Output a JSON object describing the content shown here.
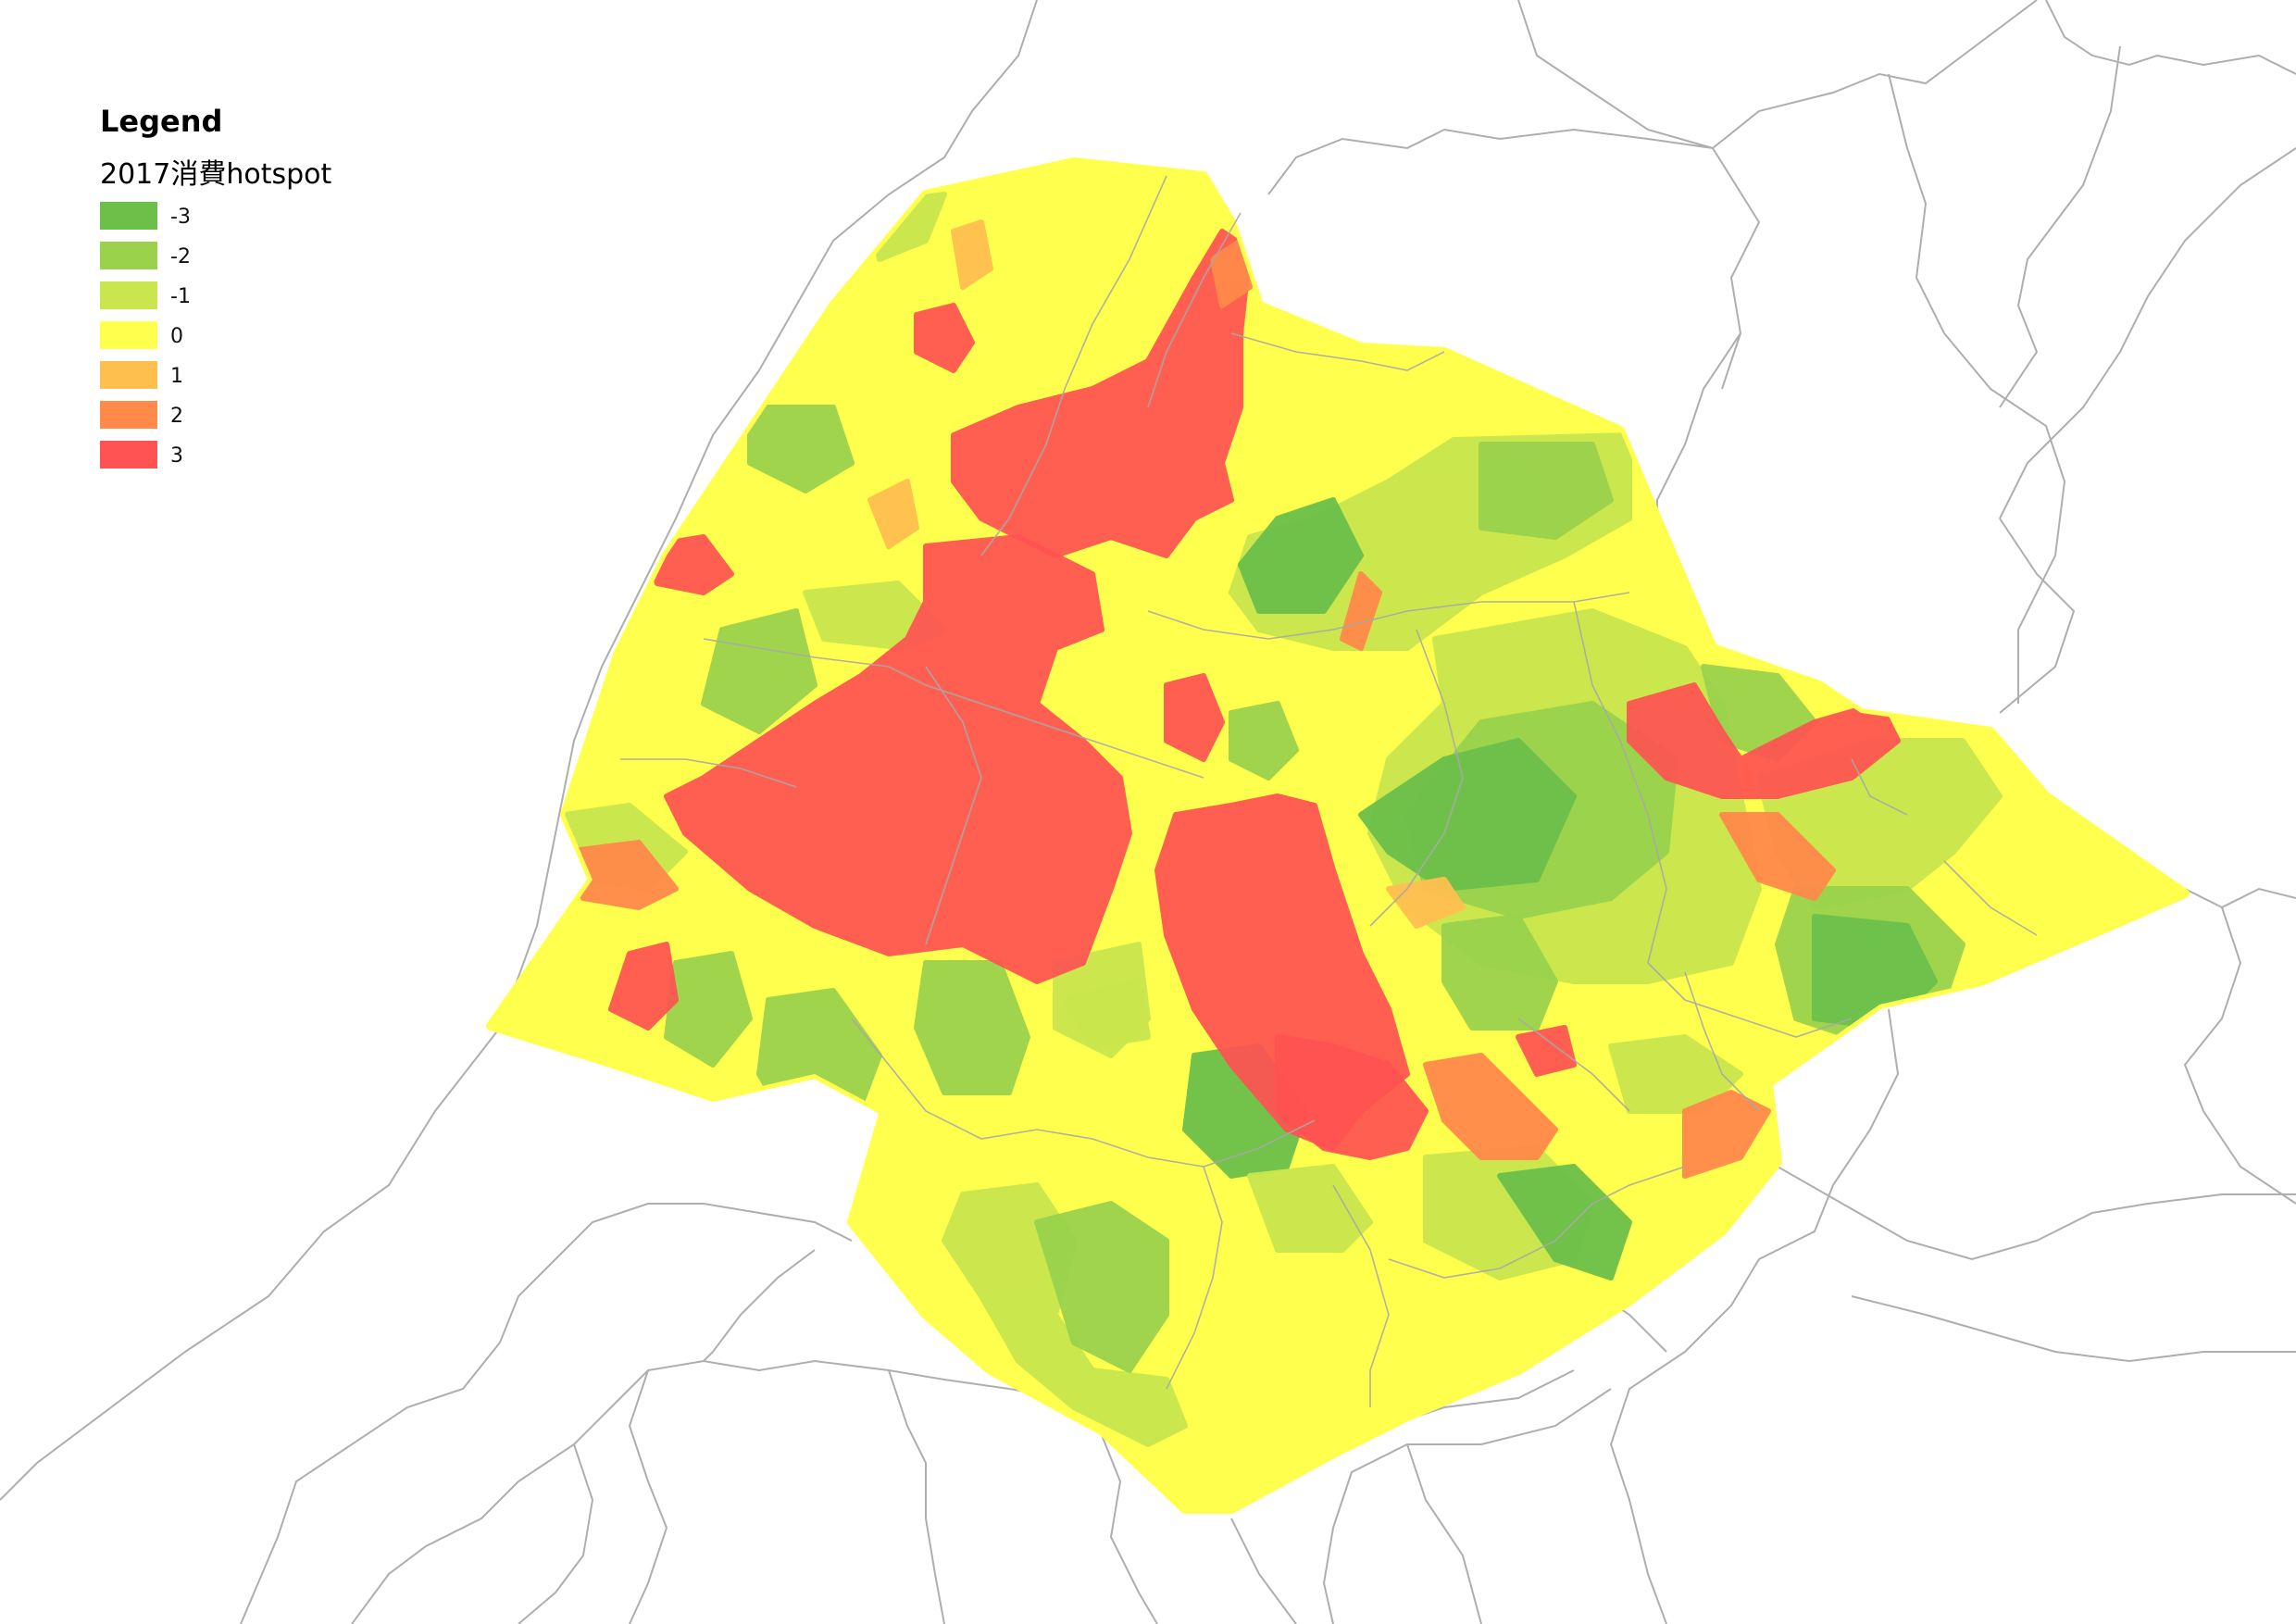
{
  "legend": {
    "title": "Legend",
    "layer": "2017消費hotspot",
    "classes": [
      {
        "label": "-3",
        "color": "#6cc04a"
      },
      {
        "label": "-2",
        "color": "#9ad24c"
      },
      {
        "label": "-1",
        "color": "#c9e64e"
      },
      {
        "label": "0",
        "color": "#ffff4d"
      },
      {
        "label": "1",
        "color": "#ffbf4f"
      },
      {
        "label": "2",
        "color": "#ff8a4a"
      },
      {
        "label": "3",
        "color": "#ff5252"
      }
    ]
  },
  "colors": {
    "background": "#ffffff",
    "boundary": "#9a9a9a",
    "outline": "#ffff4d"
  }
}
